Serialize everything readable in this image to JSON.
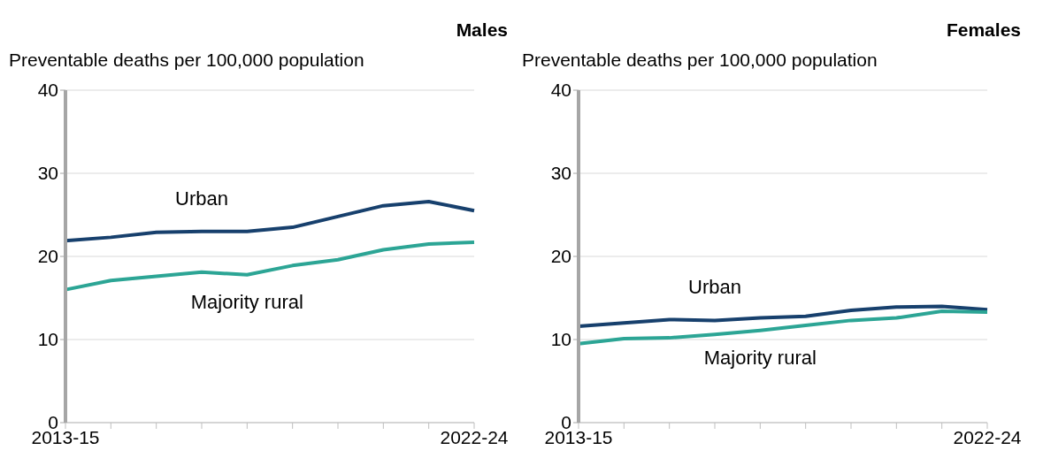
{
  "chart_data": [
    {
      "type": "line",
      "title": "Males",
      "ylabel": "Preventable deaths per 100,000 population",
      "categories": [
        "2013-15",
        null,
        null,
        null,
        null,
        null,
        null,
        null,
        null,
        "2022-24"
      ],
      "series": [
        {
          "name": "Urban",
          "color": "#17406d",
          "values": [
            21.9,
            22.3,
            22.9,
            23.0,
            23.0,
            23.5,
            24.8,
            26.1,
            26.6,
            25.5
          ]
        },
        {
          "name": "Majority rural",
          "color": "#2ca595",
          "values": [
            16.0,
            17.1,
            17.6,
            18.1,
            17.8,
            18.9,
            19.6,
            20.8,
            21.5,
            21.7
          ]
        }
      ],
      "ylim": [
        0,
        40
      ],
      "yticks": [
        0,
        10,
        20,
        30,
        40
      ],
      "grid": "y",
      "legend": false,
      "marker": "none",
      "line_style": "solid"
    },
    {
      "type": "line",
      "title": "Females",
      "ylabel": "Preventable deaths per 100,000 population",
      "categories": [
        "2013-15",
        null,
        null,
        null,
        null,
        null,
        null,
        null,
        null,
        "2022-24"
      ],
      "series": [
        {
          "name": "Urban",
          "color": "#17406d",
          "values": [
            11.6,
            12.0,
            12.4,
            12.3,
            12.6,
            12.8,
            13.5,
            13.9,
            14.0,
            13.6
          ]
        },
        {
          "name": "Majority rural",
          "color": "#2ca595",
          "values": [
            9.5,
            10.1,
            10.2,
            10.6,
            11.1,
            11.7,
            12.3,
            12.6,
            13.4,
            13.3
          ]
        }
      ],
      "ylim": [
        0,
        40
      ],
      "yticks": [
        0,
        10,
        20,
        30,
        40
      ],
      "grid": "y",
      "legend": false,
      "marker": "none",
      "line_style": "solid"
    }
  ]
}
